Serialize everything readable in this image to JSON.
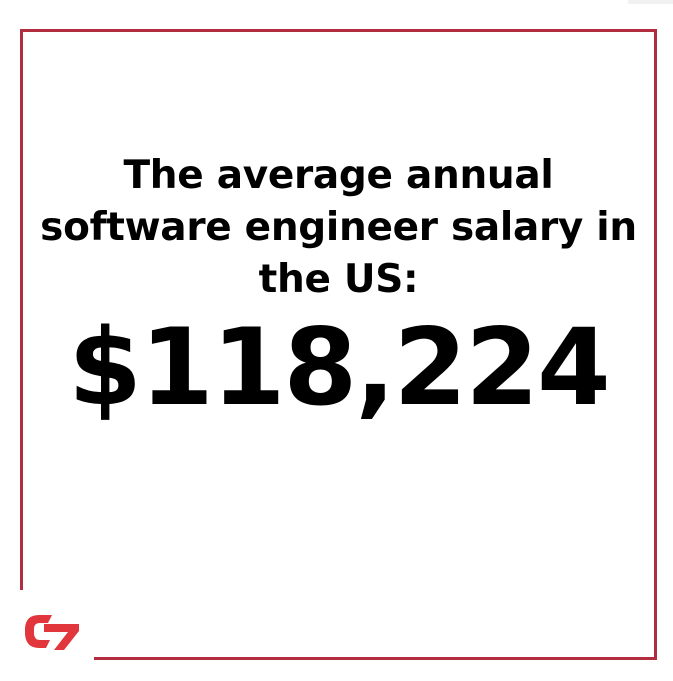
{
  "headline": "The average annual software engineer salary in the US:",
  "amount": "$118,224",
  "colors": {
    "frame": "#b22d3f",
    "logo": "#e1373c",
    "text": "#000000",
    "background": "#ffffff"
  },
  "logo": {
    "icon": "brand-logo-icon"
  }
}
